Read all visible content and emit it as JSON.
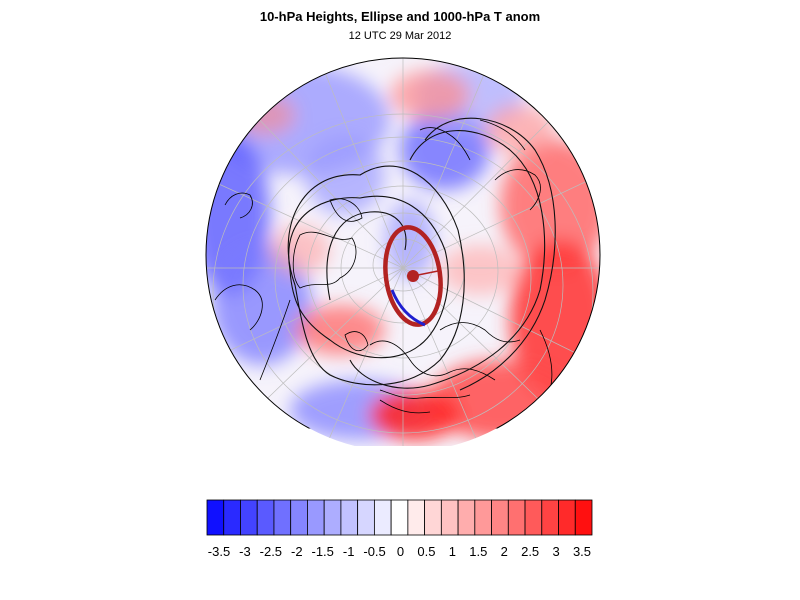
{
  "title": "10-hPa Heights, Ellipse and 1000-hPa T anom",
  "subtitle": "12 UTC 29 Mar 2012",
  "map": {
    "projection": "orthographic",
    "field": "1000-hPa T anom",
    "contours": "10-hPa Heights",
    "ellipse": "Ellipse",
    "colors": {
      "ellipse": "#b22222",
      "ellipse_center": "#b22222",
      "axis_line": "#1f1fd0",
      "contour": "#000000",
      "coast": "#000000",
      "grid": "#bfbfbf"
    }
  },
  "colorbar": {
    "colors": [
      "#1010ff",
      "#2a2aff",
      "#4343ff",
      "#5a5aff",
      "#7070ff",
      "#8585ff",
      "#9999ff",
      "#adadff",
      "#c2c2ff",
      "#d6d6ff",
      "#ebebff",
      "#ffffff",
      "#ffebeb",
      "#ffd6d6",
      "#ffc2c2",
      "#ffadad",
      "#ff9999",
      "#ff8585",
      "#ff7070",
      "#ff5a5a",
      "#ff4343",
      "#ff2a2a",
      "#ff1010"
    ],
    "tick_labels": [
      "-3.5",
      "-3",
      "-2.5",
      "-2",
      "-1.5",
      "-1",
      "-0.5",
      "0",
      "0.5",
      "1",
      "1.5",
      "2",
      "2.5",
      "3",
      "3.5"
    ]
  }
}
